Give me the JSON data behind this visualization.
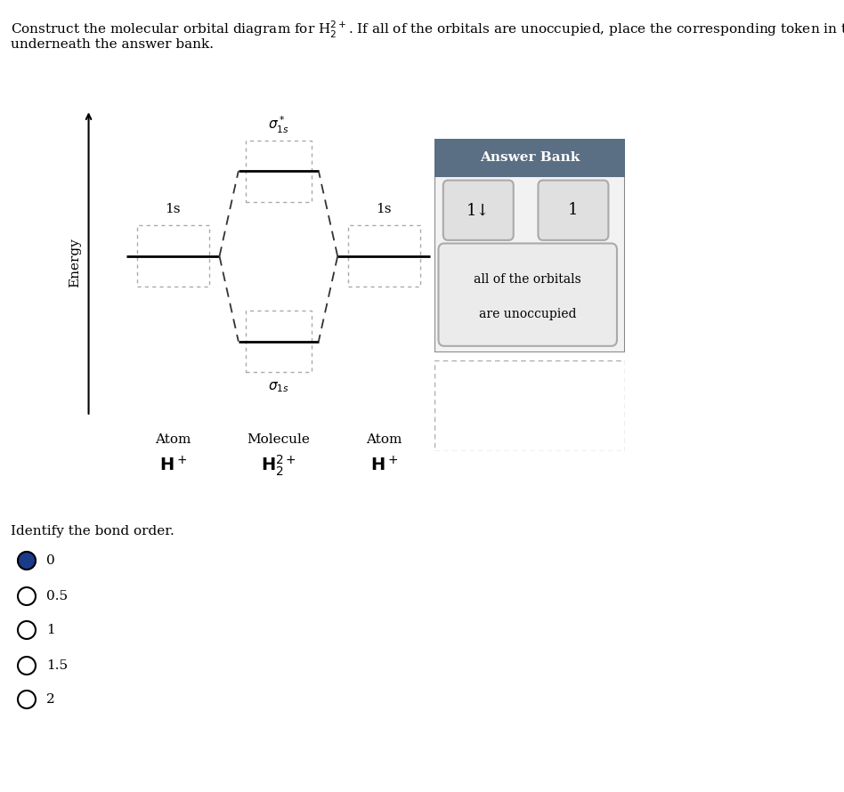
{
  "bg_color": "#ffffff",
  "answer_bank_header_color": "#5a6e84",
  "answer_bank_bg": "#f2f2f2",
  "token_bg": "#e0e0e0",
  "unocc_bg": "#ebebeb",
  "line_color": "#000000",
  "dotted_color": "#999999",
  "font_size_main": 11,
  "energy_label": "Energy",
  "atom_label": "Atom",
  "molecule_label": "Molecule",
  "answer_bank_title": "Answer Bank",
  "unoccupied_line1": "all of the orbitals",
  "unoccupied_line2": "are unoccupied"
}
